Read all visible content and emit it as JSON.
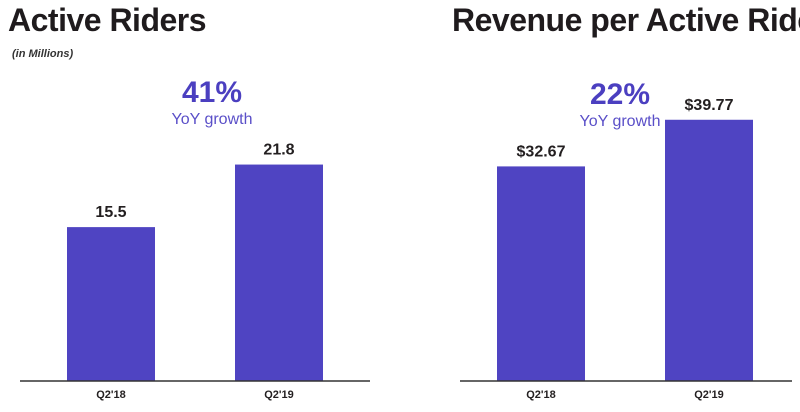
{
  "colors": {
    "bar": "#4f44c2",
    "accent": "#4b3fc0",
    "text": "#231f20"
  },
  "chart_data": [
    {
      "type": "bar",
      "title": "Active Riders",
      "subtitle": "(in Millions)",
      "categories": [
        "Q2'18",
        "Q2'19"
      ],
      "values": [
        15.5,
        21.8
      ],
      "value_labels": [
        "15.5",
        "21.8"
      ],
      "annotation": {
        "value": "41%",
        "label": "YoY growth"
      },
      "xlabel": "",
      "ylabel": "",
      "ylim": [
        0,
        28
      ]
    },
    {
      "type": "bar",
      "title": "Revenue per Active Rider",
      "categories": [
        "Q2'18",
        "Q2'19"
      ],
      "values": [
        32.67,
        39.77
      ],
      "value_labels": [
        "$32.67",
        "$39.77"
      ],
      "annotation": {
        "value": "22%",
        "label": "YoY growth"
      },
      "xlabel": "",
      "ylabel": "",
      "ylim": [
        0,
        51
      ]
    }
  ]
}
